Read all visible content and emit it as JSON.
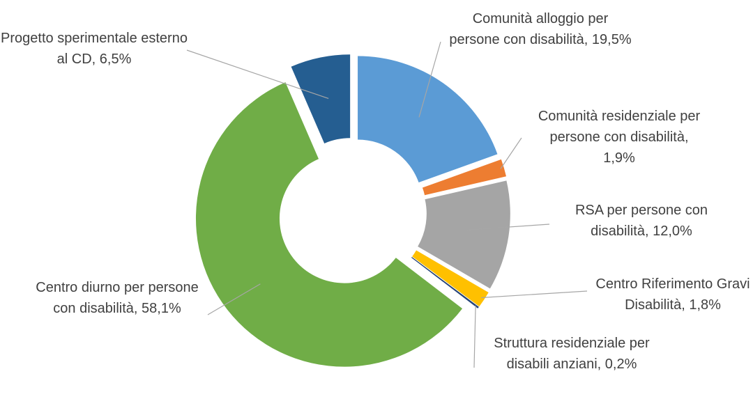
{
  "chart_data": {
    "type": "donut",
    "categories": [
      "Comunità alloggio per persone con disabilità,",
      "Comunità residenziale per persone con disabilità,",
      "RSA per persone con disabilità,",
      "Centro Riferimento Gravi Disabilità,",
      "Struttura residenziale per disabili anziani,",
      "Centro diurno per persone con disabilità,",
      "Progetto sperimentale esterno al CD,"
    ],
    "values": [
      19.5,
      1.9,
      12.0,
      1.8,
      0.2,
      58.1,
      6.5
    ],
    "value_labels": [
      "19,5%",
      "1,9%",
      "12,0%",
      "1,8%",
      "0,2%",
      "58,1%",
      "6,5%"
    ],
    "colors": [
      "#5b9bd5",
      "#ed7d31",
      "#a5a5a5",
      "#ffc000",
      "#264478",
      "#70ad47",
      "#255e91"
    ]
  }
}
